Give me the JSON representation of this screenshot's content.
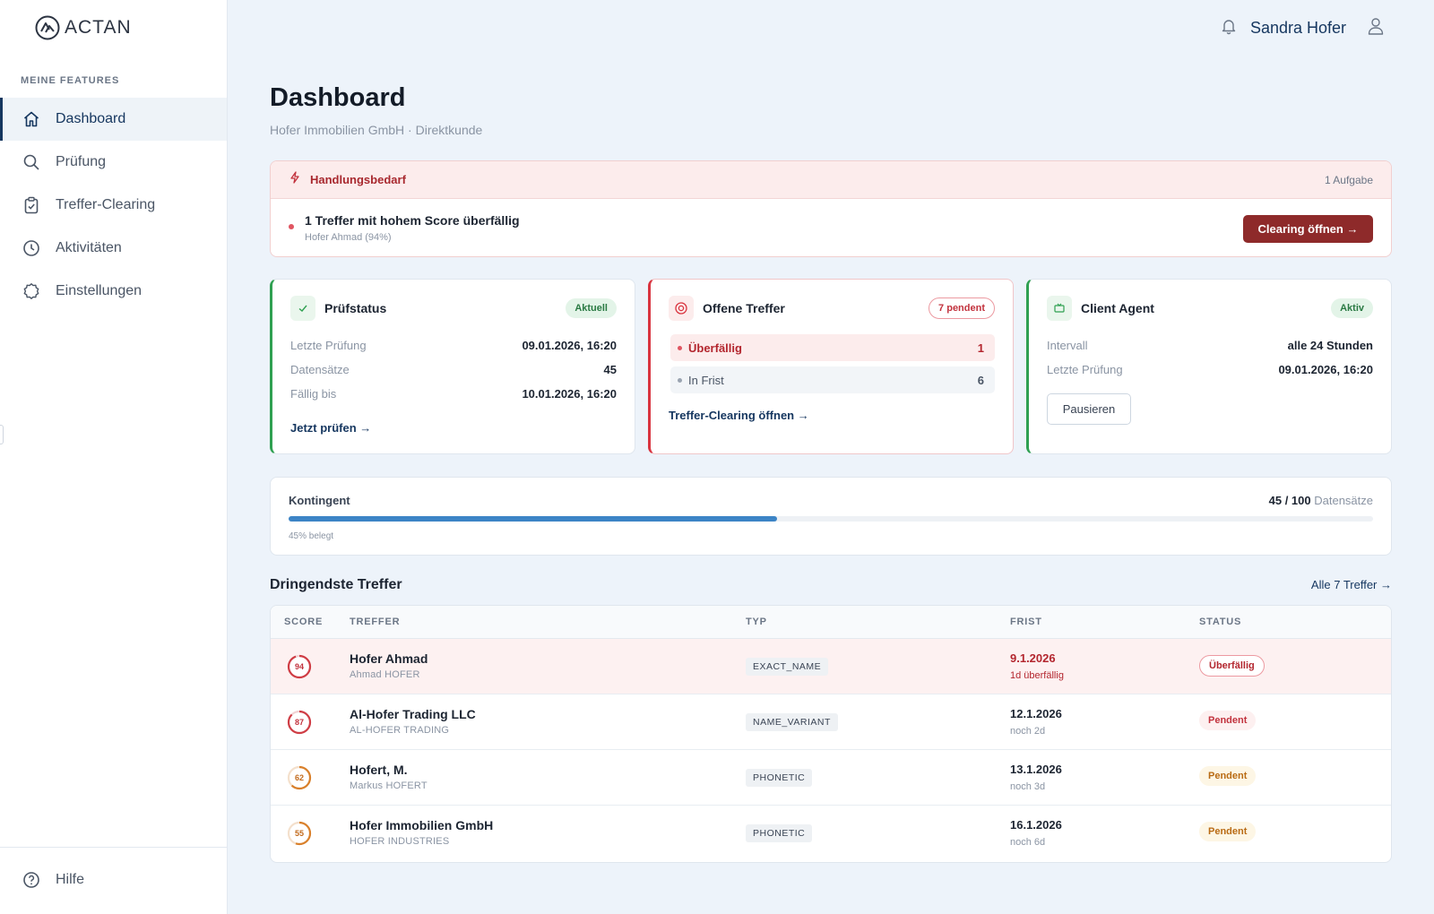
{
  "app": {
    "logo_text": "ACTAN"
  },
  "sidebar": {
    "section_label": "MEINE FEATURES",
    "items": [
      {
        "label": "Dashboard",
        "icon": "home-icon",
        "active": true
      },
      {
        "label": "Prüfung",
        "icon": "search-icon"
      },
      {
        "label": "Treffer-Clearing",
        "icon": "clipboard-check-icon"
      },
      {
        "label": "Aktivitäten",
        "icon": "clock-icon"
      },
      {
        "label": "Einstellungen",
        "icon": "gear-icon"
      }
    ],
    "help_label": "Hilfe"
  },
  "header": {
    "user_name": "Sandra Hofer"
  },
  "page": {
    "title": "Dashboard",
    "subtitle": "Hofer Immobilien GmbH · Direktkunde"
  },
  "alert": {
    "title": "Handlungsbedarf",
    "count": "1 Aufgabe",
    "message": "1 Treffer mit hohem Score überfällig",
    "detail": "Hofer Ahmad (94%)",
    "button": "Clearing öffnen →"
  },
  "cards": {
    "pruefstatus": {
      "title": "Prüfstatus",
      "badge": "Aktuell",
      "rows": [
        {
          "label": "Letzte Prüfung",
          "value": "09.01.2026, 16:20"
        },
        {
          "label": "Datensätze",
          "value": "45"
        },
        {
          "label": "Fällig bis",
          "value": "10.01.2026, 16:20"
        }
      ],
      "link": "Jetzt prüfen →"
    },
    "offene_treffer": {
      "title": "Offene Treffer",
      "badge": "7 pendent",
      "rows": [
        {
          "label": "Überfällig",
          "value": "1"
        },
        {
          "label": "In Frist",
          "value": "6"
        }
      ],
      "link": "Treffer-Clearing öffnen →"
    },
    "client_agent": {
      "title": "Client Agent",
      "badge": "Aktiv",
      "rows": [
        {
          "label": "Intervall",
          "value": "alle 24 Stunden"
        },
        {
          "label": "Letzte Prüfung",
          "value": "09.01.2026, 16:20"
        }
      ],
      "button": "Pausieren"
    }
  },
  "quota": {
    "label": "Kontingent",
    "used": "45",
    "total": "/ 100",
    "unit": "Datensätze",
    "fraction": 0.45,
    "sub": "45% belegt"
  },
  "hits": {
    "title": "Dringendste Treffer",
    "all_link": "Alle 7 Treffer →",
    "columns": [
      "SCORE",
      "TREFFER",
      "TYP",
      "FRIST",
      "STATUS"
    ],
    "rows": [
      {
        "score": "94",
        "name": "Hofer Ahmad",
        "sub": "Ahmad HOFER",
        "typ": "EXACT_NAME",
        "frist": "9.1.2026",
        "frist_sub": "1d überfällig",
        "status": "Überfällig"
      },
      {
        "score": "87",
        "name": "Al-Hofer Trading LLC",
        "sub": "AL-HOFER TRADING",
        "typ": "NAME_VARIANT",
        "frist": "12.1.2026",
        "frist_sub": "noch 2d",
        "status": "Pendent"
      },
      {
        "score": "62",
        "name": "Hofert, M.",
        "sub": "Markus HOFERT",
        "typ": "PHONETIC",
        "frist": "13.1.2026",
        "frist_sub": "noch 3d",
        "status": "Pendent"
      },
      {
        "score": "55",
        "name": "Hofer Immobilien GmbH",
        "sub": "HOFER INDUSTRIES",
        "typ": "PHONETIC",
        "frist": "16.1.2026",
        "frist_sub": "noch 6d",
        "status": "Pendent"
      }
    ]
  },
  "colors": {
    "brand_navy": "#15365f",
    "alert_red": "#8e2a2a",
    "success_green": "#2fa051",
    "progress_blue": "#3c84c6"
  }
}
